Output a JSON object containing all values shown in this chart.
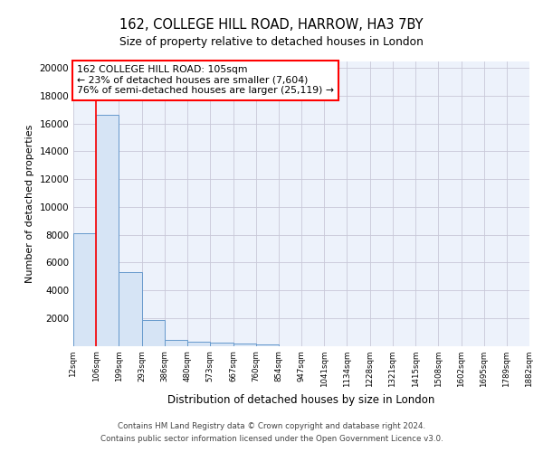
{
  "title1": "162, COLLEGE HILL ROAD, HARROW, HA3 7BY",
  "title2": "Size of property relative to detached houses in London",
  "xlabel": "Distribution of detached houses by size in London",
  "ylabel": "Number of detached properties",
  "bin_edges": [
    12,
    106,
    199,
    293,
    386,
    480,
    573,
    667,
    760,
    854,
    947,
    1041,
    1134,
    1228,
    1321,
    1415,
    1508,
    1602,
    1695,
    1789,
    1882
  ],
  "bar_heights": [
    8100,
    16600,
    5300,
    1850,
    450,
    300,
    200,
    150,
    100,
    0,
    0,
    0,
    0,
    0,
    0,
    0,
    0,
    0,
    0,
    0
  ],
  "bar_color": "#d6e4f5",
  "bar_edge_color": "#6699cc",
  "grid_color": "#c8c8d8",
  "background_color": "#edf2fb",
  "red_line_x": 106,
  "annotation_text": "162 COLLEGE HILL ROAD: 105sqm\n← 23% of detached houses are smaller (7,604)\n76% of semi-detached houses are larger (25,119) →",
  "annotation_box_color": "white",
  "annotation_box_edge": "red",
  "ylim": [
    0,
    20500
  ],
  "yticks": [
    0,
    2000,
    4000,
    6000,
    8000,
    10000,
    12000,
    14000,
    16000,
    18000,
    20000
  ],
  "footer1": "Contains HM Land Registry data © Crown copyright and database right 2024.",
  "footer2": "Contains public sector information licensed under the Open Government Licence v3.0."
}
